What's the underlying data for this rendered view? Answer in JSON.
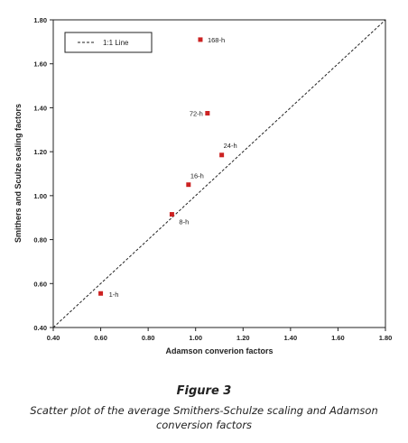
{
  "chart_data": {
    "type": "scatter",
    "xlabel": "Adamson converion factors",
    "ylabel": "Smithers and Sculze scaling factors",
    "xlim": [
      0.4,
      1.8
    ],
    "ylim": [
      0.4,
      1.8
    ],
    "x_ticks": [
      "0.40",
      "0.60",
      "0.80",
      "1.00",
      "1.20",
      "1.40",
      "1.60",
      "1.80"
    ],
    "y_ticks": [
      "0.40",
      "0.60",
      "0.80",
      "1.00",
      "1.20",
      "1.40",
      "1.60",
      "1.80"
    ],
    "grid": false,
    "legend": {
      "position": "top-left",
      "entries": [
        "1:1 Line"
      ]
    },
    "reference_line": {
      "label": "1:1 Line",
      "style": "dashed",
      "from": [
        0.4,
        0.4
      ],
      "to": [
        1.8,
        1.8
      ]
    },
    "points": [
      {
        "label": "1-h",
        "x": 0.6,
        "y": 0.555
      },
      {
        "label": "8-h",
        "x": 0.9,
        "y": 0.915
      },
      {
        "label": "16-h",
        "x": 0.97,
        "y": 1.05
      },
      {
        "label": "24-h",
        "x": 1.11,
        "y": 1.185
      },
      {
        "label": "72-h",
        "x": 1.05,
        "y": 1.375
      },
      {
        "label": "168-h",
        "x": 1.02,
        "y": 1.71
      }
    ],
    "marker_color": "#cc2222"
  },
  "figure": {
    "title": "Figure 3",
    "caption": "Scatter plot of the average Smithers-Schulze scaling and Adamson conversion factors"
  }
}
